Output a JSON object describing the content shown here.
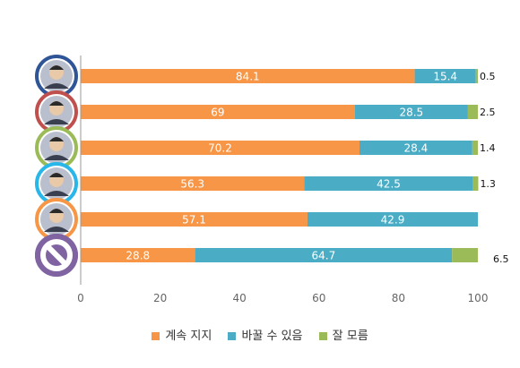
{
  "chart_data": {
    "type": "bar",
    "orientation": "horizontal",
    "stacked": true,
    "categories": [
      "avatar-1",
      "avatar-2",
      "avatar-3",
      "avatar-4",
      "avatar-5",
      "avatar-6"
    ],
    "series": [
      {
        "name": "계속 지지",
        "color": "#F79646",
        "values": [
          84.1,
          69,
          70.2,
          56.3,
          57.1,
          28.8
        ]
      },
      {
        "name": "바꿀 수 있음",
        "color": "#4BACC6",
        "values": [
          15.4,
          28.5,
          28.4,
          42.5,
          42.9,
          64.7
        ]
      },
      {
        "name": "잘 모름",
        "color": "#9BBB59",
        "values": [
          0.5,
          2.5,
          1.4,
          1.3,
          null,
          6.5
        ]
      }
    ],
    "labels": [
      [
        "84.1",
        "15.4",
        "0.5"
      ],
      [
        "69",
        "28.5",
        "2.5"
      ],
      [
        "70.2",
        "28.4",
        "1.4"
      ],
      [
        "56.3",
        "42.5",
        "1.3"
      ],
      [
        "57.1",
        "42.9",
        ""
      ],
      [
        "28.8",
        "64.7",
        "6.5"
      ]
    ],
    "xlim": [
      0,
      100
    ],
    "xticks": [
      0,
      20,
      40,
      60,
      80,
      100
    ],
    "xtick_labels": [
      "0",
      "20",
      "40",
      "60",
      "80",
      "100"
    ],
    "grid": false,
    "legend_position": "bottom",
    "avatar_ring_colors": [
      "#2F5597",
      "#C0504D",
      "#9BBB59",
      "#29B6E8",
      "#F79646",
      "#8064A2"
    ],
    "last_avatar_icon": "prohibited-icon"
  }
}
